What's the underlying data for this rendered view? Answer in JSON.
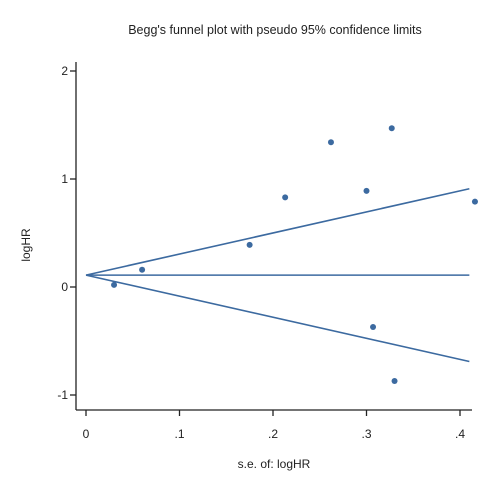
{
  "chart_data": {
    "type": "scatter",
    "title": "Begg's funnel plot with pseudo 95% confidence limits",
    "xlabel": "s.e. of: logHR",
    "ylabel": "logHR",
    "xlim": [
      0,
      0.41
    ],
    "ylim": [
      -1.1,
      2.1
    ],
    "x_ticks": [
      0,
      0.1,
      0.2,
      0.3,
      0.4
    ],
    "x_tick_labels": [
      "0",
      ".1",
      ".2",
      ".3",
      ".4"
    ],
    "y_ticks": [
      -1,
      0,
      1,
      2
    ],
    "y_tick_labels": [
      "-1",
      "0",
      "1",
      "2"
    ],
    "grid": false,
    "pooled_estimate": 0.11,
    "confidence_limits": {
      "x": [
        0,
        0.41
      ],
      "upper": [
        0.11,
        0.91
      ],
      "lower": [
        0.11,
        -0.69
      ]
    },
    "points": [
      {
        "x": 0.03,
        "y": 0.02
      },
      {
        "x": 0.06,
        "y": 0.16
      },
      {
        "x": 0.175,
        "y": 0.39
      },
      {
        "x": 0.213,
        "y": 0.83
      },
      {
        "x": 0.262,
        "y": 1.34
      },
      {
        "x": 0.3,
        "y": 0.89
      },
      {
        "x": 0.307,
        "y": -0.37
      },
      {
        "x": 0.327,
        "y": 1.47
      },
      {
        "x": 0.33,
        "y": -0.87
      },
      {
        "x": 0.416,
        "y": 0.79
      }
    ],
    "colors": {
      "line": "#3c6aa0",
      "marker": "#3c6aa0",
      "axis": "#222222"
    }
  }
}
